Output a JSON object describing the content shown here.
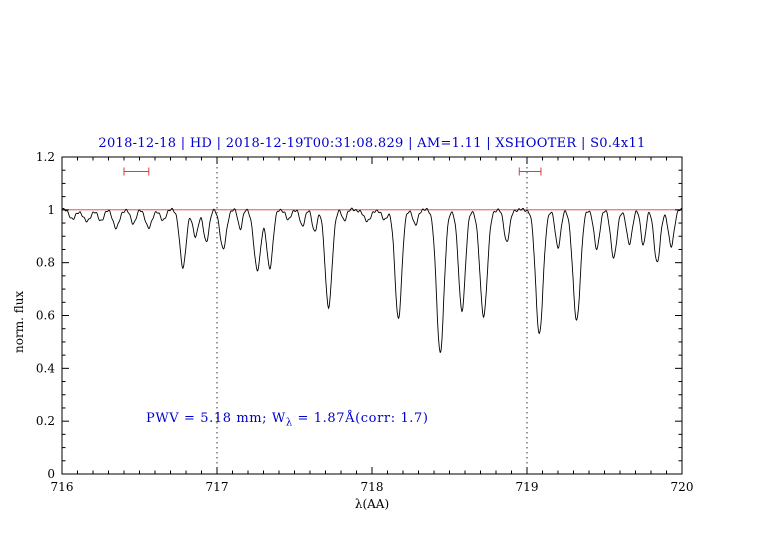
{
  "colors": {
    "accent_blue": "#0000cc",
    "accent_red": "#e03a3a",
    "line_black": "#000000"
  },
  "chart_data": {
    "type": "line",
    "title": "2018-12-18 | HD | 2018-12-19T00:31:08.829 | AM=1.11 | XSHOOTER | S0.4x11",
    "xlabel": "λ(AA)",
    "ylabel": "norm. flux",
    "annotation": {
      "part1": "PWV = 5.18 mm; W",
      "sub": "λ",
      "part2": " = 1.87Å(corr: 1.7)"
    },
    "xlim": [
      716,
      720
    ],
    "ylim": [
      0,
      1.2
    ],
    "xticks": [
      716,
      717,
      718,
      719,
      720
    ],
    "xtick_labels": [
      "716",
      "717",
      "718",
      "719",
      "720"
    ],
    "x_minor_step": 0.1,
    "yticks": [
      0,
      0.2,
      0.4,
      0.6,
      0.8,
      1,
      1.2
    ],
    "ytick_labels": [
      "0",
      "0.2",
      "0.4",
      "0.6",
      "0.8",
      "1",
      "1.2"
    ],
    "y_minor_step": 0.05,
    "grid": false,
    "continuum": {
      "y": 1.0
    },
    "guide_lines_x": [
      717,
      719
    ],
    "range_markers": [
      {
        "x1": 716.4,
        "x2": 716.56,
        "y": 1.145
      },
      {
        "x1": 718.95,
        "x2": 719.09,
        "y": 1.145
      }
    ],
    "noise_amplitude": 0.004,
    "absorption_lines": [
      [
        716.07,
        0.035,
        0.02
      ],
      [
        716.16,
        0.045,
        0.022
      ],
      [
        716.25,
        0.04,
        0.02
      ],
      [
        716.35,
        0.07,
        0.02
      ],
      [
        716.46,
        0.05,
        0.018
      ],
      [
        716.56,
        0.07,
        0.02
      ],
      [
        716.65,
        0.04,
        0.018
      ],
      [
        716.78,
        0.22,
        0.02
      ],
      [
        716.86,
        0.1,
        0.018
      ],
      [
        716.93,
        0.12,
        0.018
      ],
      [
        717.04,
        0.15,
        0.02
      ],
      [
        717.15,
        0.07,
        0.014
      ],
      [
        717.26,
        0.23,
        0.022
      ],
      [
        717.34,
        0.22,
        0.02
      ],
      [
        717.46,
        0.04,
        0.015
      ],
      [
        717.55,
        0.06,
        0.016
      ],
      [
        717.63,
        0.08,
        0.016
      ],
      [
        717.72,
        0.37,
        0.022
      ],
      [
        717.82,
        0.04,
        0.014
      ],
      [
        717.97,
        0.04,
        0.025
      ],
      [
        718.08,
        0.04,
        0.016
      ],
      [
        718.17,
        0.41,
        0.022
      ],
      [
        718.28,
        0.06,
        0.015
      ],
      [
        718.44,
        0.54,
        0.024
      ],
      [
        718.58,
        0.38,
        0.022
      ],
      [
        718.72,
        0.4,
        0.024
      ],
      [
        718.87,
        0.12,
        0.018
      ],
      [
        719.08,
        0.47,
        0.024
      ],
      [
        719.2,
        0.14,
        0.018
      ],
      [
        719.32,
        0.42,
        0.024
      ],
      [
        719.45,
        0.15,
        0.018
      ],
      [
        719.56,
        0.18,
        0.02
      ],
      [
        719.66,
        0.13,
        0.018
      ],
      [
        719.75,
        0.13,
        0.016
      ],
      [
        719.84,
        0.2,
        0.02
      ],
      [
        719.93,
        0.14,
        0.018
      ]
    ]
  }
}
